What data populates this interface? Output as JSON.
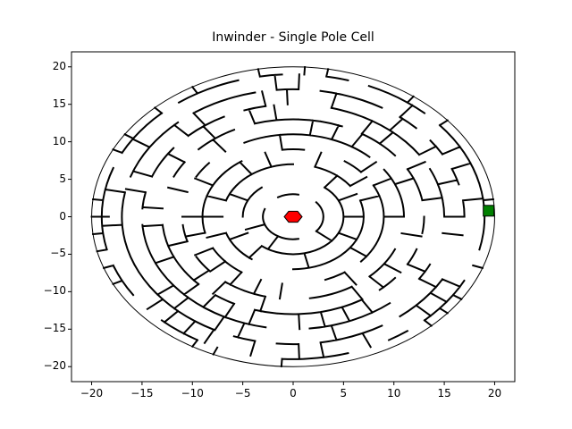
{
  "title": "Inwinder - Single Pole Cell",
  "axes": {
    "x_ticks": [
      -20,
      -15,
      -10,
      -5,
      0,
      5,
      10,
      15,
      20
    ],
    "y_ticks": [
      20,
      15,
      10,
      5,
      0,
      -5,
      -10,
      -15,
      -20
    ],
    "x_tick_labels": [
      "−20",
      "−15",
      "−10",
      "−5",
      "0",
      "5",
      "10",
      "15",
      "20"
    ],
    "y_tick_labels": [
      "20",
      "15",
      "10",
      "5",
      "0",
      "−5",
      "−10",
      "−15",
      "−20"
    ],
    "xlim": [
      -22,
      22
    ],
    "ylim": [
      -22,
      22
    ]
  },
  "maze": {
    "outer_radius": 20,
    "rings": 10,
    "start_color": "#ff0000",
    "goal_color": "#008000",
    "wall_color": "#000000",
    "start_position": [
      0,
      0
    ],
    "goal_position": [
      19.4,
      0.8
    ]
  }
}
